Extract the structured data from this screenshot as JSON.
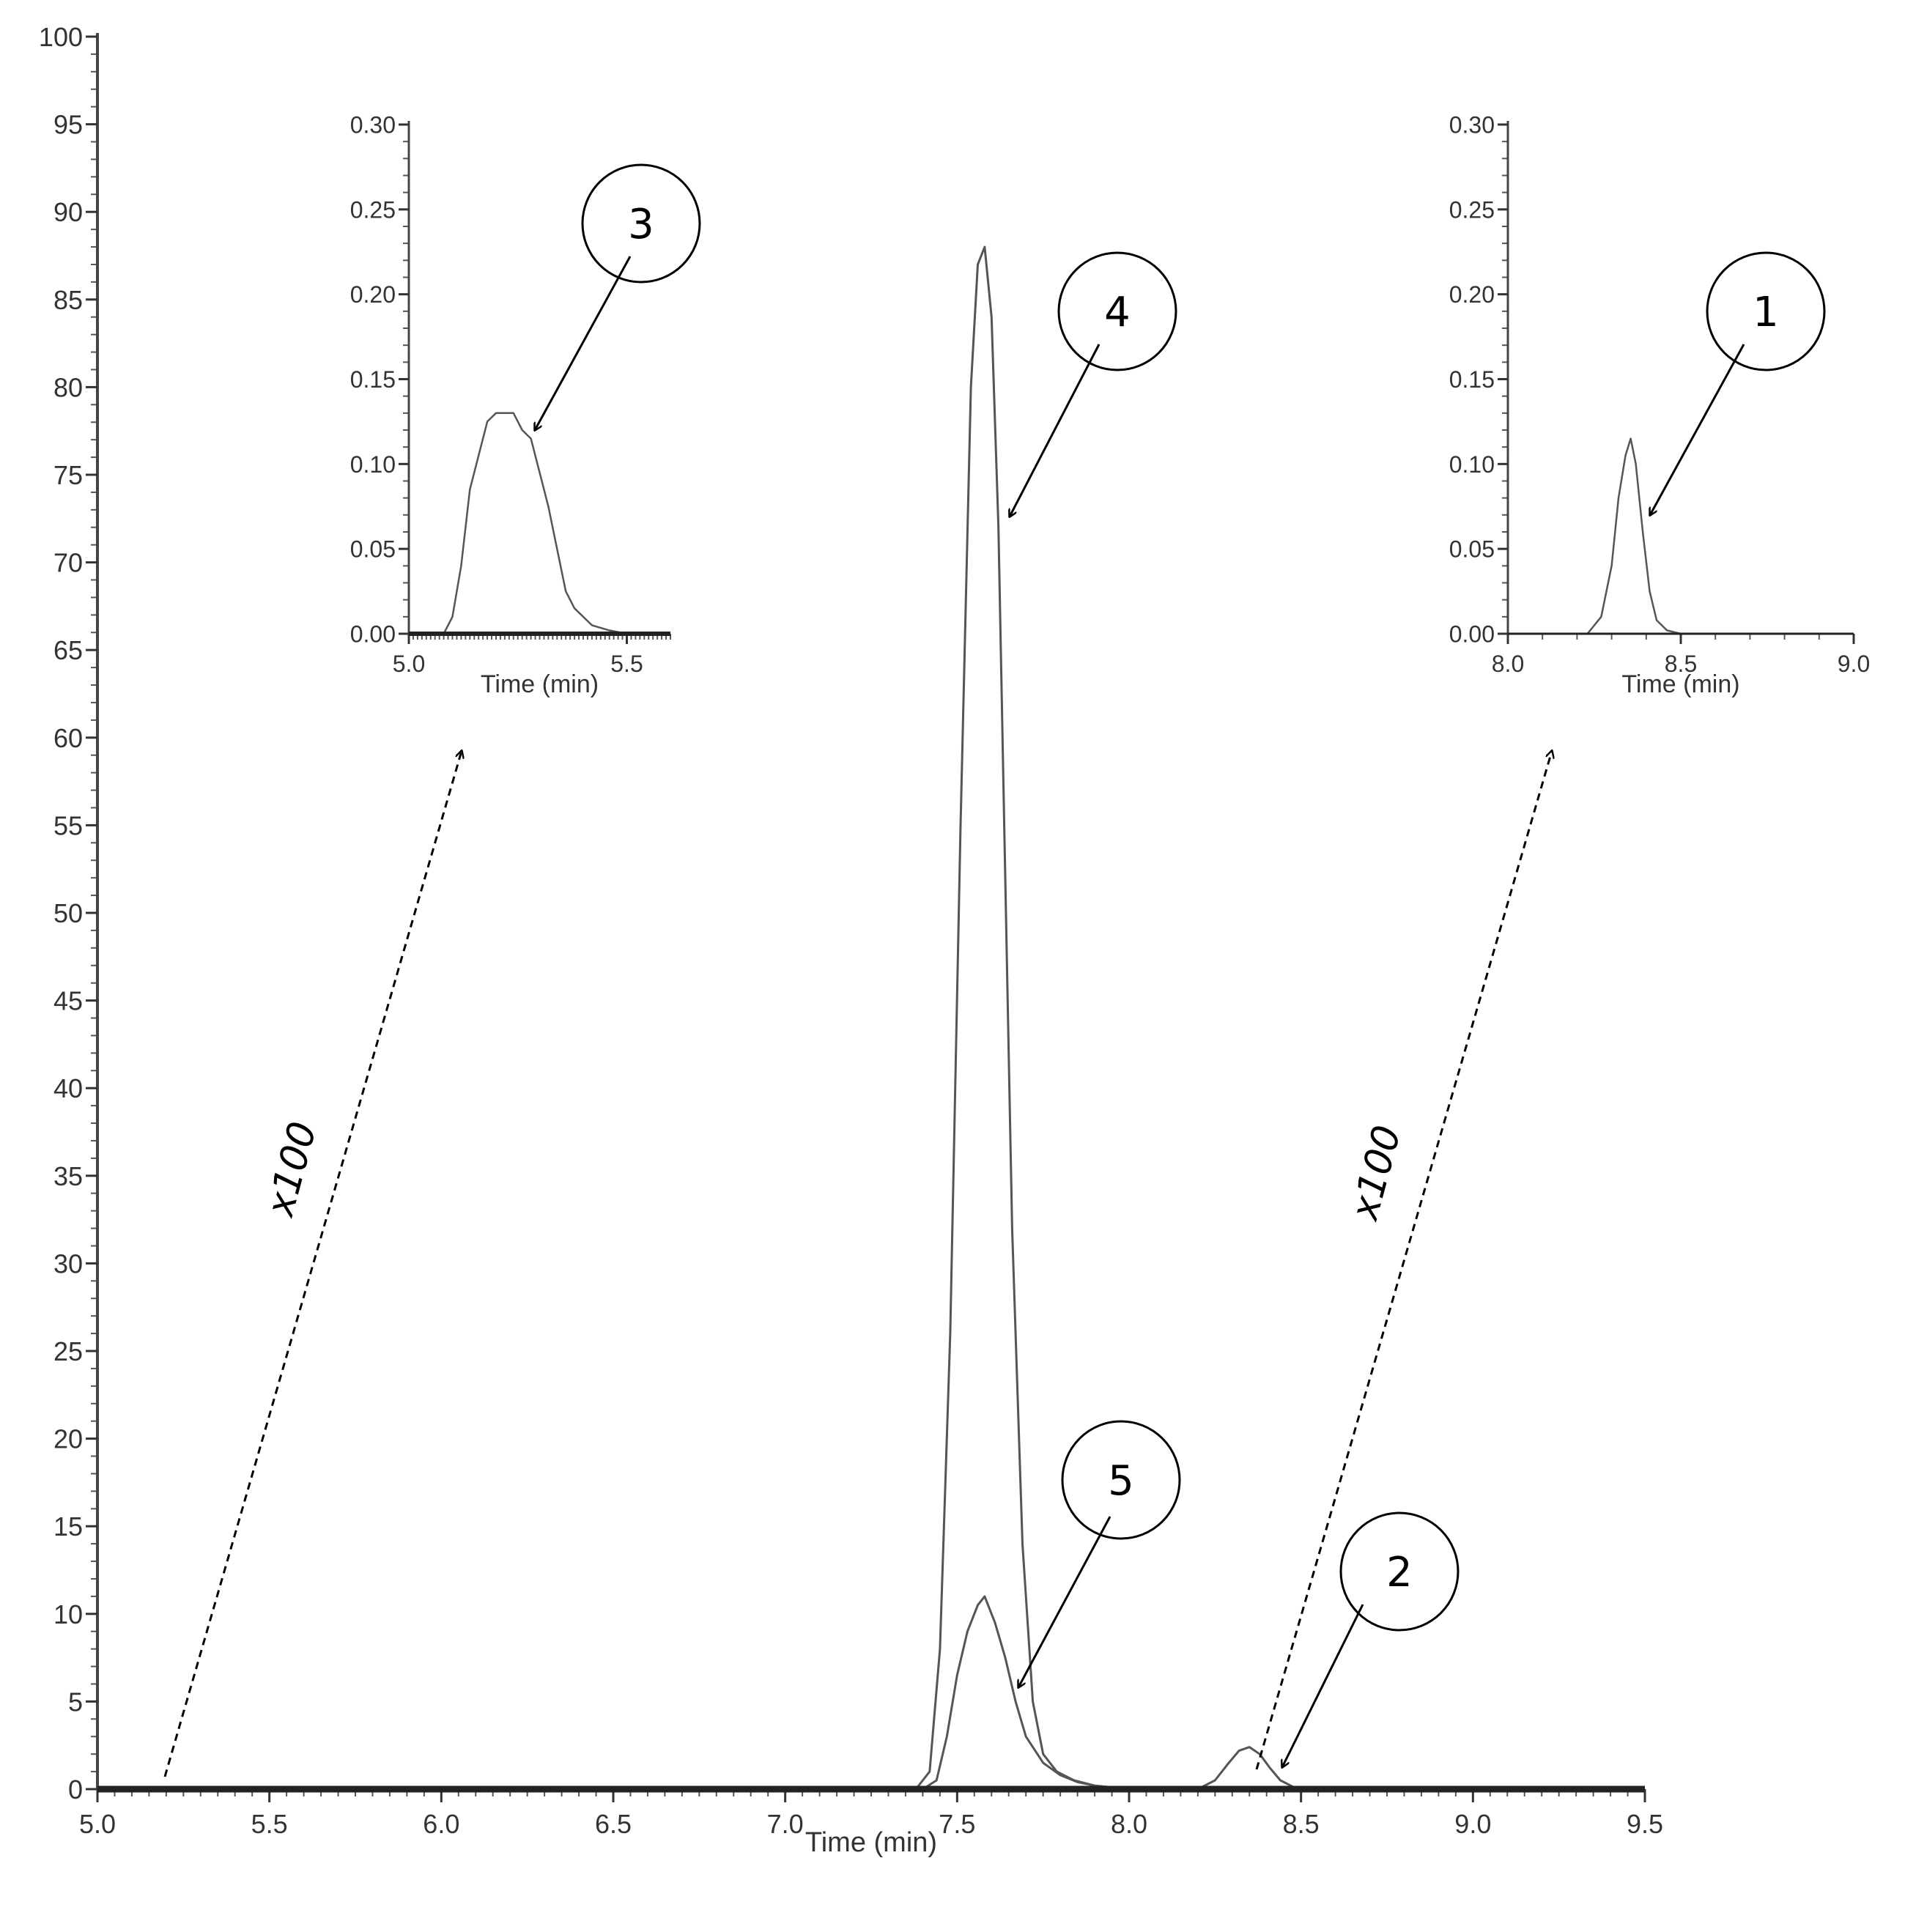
{
  "chart_data": [
    {
      "type": "line",
      "panel": "main",
      "xlabel": "Time (min)",
      "ylabel": "",
      "xlim": [
        5.0,
        9.5
      ],
      "ylim": [
        0,
        100
      ],
      "x_ticks": [
        "5.0",
        "5.5",
        "6.0",
        "6.5",
        "7.0",
        "7.5",
        "8.0",
        "8.5",
        "9.0",
        "9.5"
      ],
      "y_ticks": [
        "0",
        "5",
        "10",
        "15",
        "20",
        "25",
        "30",
        "35",
        "40",
        "45",
        "50",
        "55",
        "60",
        "65",
        "70",
        "75",
        "80",
        "85",
        "90",
        "95",
        "100"
      ],
      "grid": false,
      "series": [
        {
          "x": [
            7.38,
            7.42,
            7.45,
            7.48,
            7.51,
            7.54,
            7.56,
            7.58,
            7.6,
            7.62,
            7.64,
            7.66,
            7.69,
            7.72,
            7.75,
            7.79,
            7.84,
            7.9,
            8.0
          ],
          "y": [
            0,
            1,
            8,
            26,
            55,
            80,
            87,
            88,
            84,
            72,
            52,
            32,
            14,
            5,
            2,
            1,
            0.5,
            0.2,
            0
          ]
        },
        {
          "x": [
            7.4,
            7.44,
            7.47,
            7.5,
            7.53,
            7.56,
            7.58,
            7.61,
            7.64,
            7.67,
            7.7,
            7.75,
            7.8,
            7.85,
            7.9,
            7.95,
            8.0,
            8.05
          ],
          "y": [
            0,
            0.5,
            3,
            6.5,
            9,
            10.5,
            11,
            9.5,
            7.5,
            5,
            3,
            1.5,
            0.8,
            0.4,
            0.2,
            0.1,
            0,
            0
          ]
        },
        {
          "x": [
            8.2,
            8.25,
            8.29,
            8.32,
            8.35,
            8.38,
            8.41,
            8.44,
            8.48,
            8.52
          ],
          "y": [
            0,
            0.5,
            1.5,
            2.2,
            2.4,
            2.0,
            1.2,
            0.5,
            0.1,
            0
          ]
        }
      ],
      "annotations": [
        {
          "label": "4",
          "x": 7.65,
          "y": 75
        },
        {
          "label": "5",
          "x": 7.68,
          "y": 6
        },
        {
          "label": "2",
          "x": 8.45,
          "y": 1.2
        }
      ],
      "multipliers": [
        "x100",
        "x100"
      ]
    },
    {
      "type": "line",
      "panel": "inset-left",
      "xlabel": "Time (min)",
      "xlim": [
        5.0,
        5.6
      ],
      "ylim": [
        0,
        0.3
      ],
      "x_ticks": [
        "5.0",
        "5.5"
      ],
      "y_ticks": [
        "0.00",
        "0.05",
        "0.10",
        "0.15",
        "0.20",
        "0.25",
        "0.30"
      ],
      "series": [
        {
          "x": [
            5.08,
            5.1,
            5.12,
            5.14,
            5.16,
            5.18,
            5.2,
            5.22,
            5.24,
            5.26,
            5.28,
            5.3,
            5.32,
            5.34,
            5.36,
            5.38,
            5.42,
            5.46,
            5.5
          ],
          "y": [
            0,
            0.01,
            0.04,
            0.085,
            0.105,
            0.125,
            0.13,
            0.13,
            0.13,
            0.12,
            0.115,
            0.095,
            0.075,
            0.05,
            0.025,
            0.015,
            0.005,
            0.002,
            0
          ]
        }
      ],
      "annotations": [
        {
          "label": "3",
          "x": 5.27,
          "y": 0.125
        }
      ]
    },
    {
      "type": "line",
      "panel": "inset-right",
      "xlabel": "Time (min)",
      "xlim": [
        8.0,
        9.0
      ],
      "ylim": [
        0,
        0.3
      ],
      "x_ticks": [
        "8.0",
        "8.5",
        "9.0"
      ],
      "y_ticks": [
        "0.00",
        "0.05",
        "0.10",
        "0.15",
        "0.20",
        "0.25",
        "0.30"
      ],
      "series": [
        {
          "x": [
            8.23,
            8.27,
            8.3,
            8.32,
            8.34,
            8.355,
            8.37,
            8.39,
            8.41,
            8.43,
            8.46,
            8.5
          ],
          "y": [
            0,
            0.01,
            0.04,
            0.08,
            0.105,
            0.115,
            0.1,
            0.06,
            0.025,
            0.008,
            0.002,
            0
          ]
        }
      ],
      "annotations": [
        {
          "label": "1",
          "x": 8.42,
          "y": 0.075
        }
      ]
    }
  ]
}
